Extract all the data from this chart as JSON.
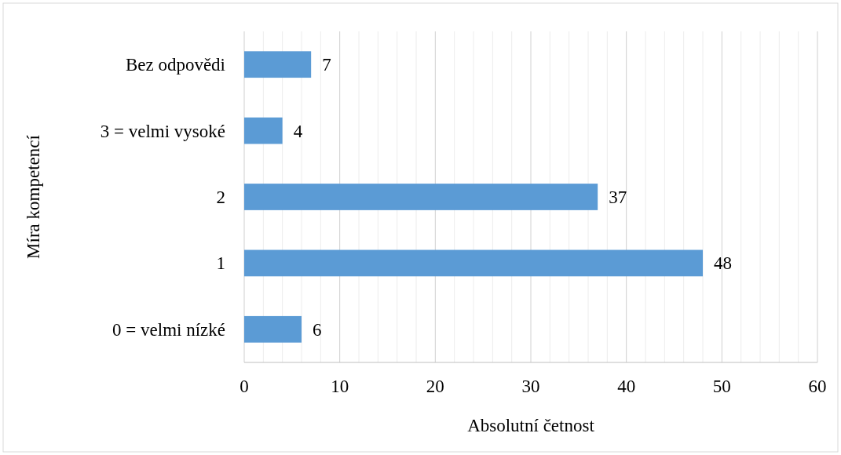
{
  "chart_data": {
    "type": "bar",
    "orientation": "horizontal",
    "categories": [
      "Bez odpovědi",
      "3 = velmi vysoké",
      "2",
      "1",
      "0 = velmi nízké"
    ],
    "values": [
      7,
      4,
      37,
      48,
      6
    ],
    "color": "#5b9bd5",
    "xlim": [
      0,
      60
    ],
    "xticks": [
      0,
      {
        "value": 2,
        "label": null
      },
      {
        "value": 4,
        "label": null
      },
      {
        "value": 6,
        "label": null
      },
      {
        "value": 8,
        "label": null
      },
      10,
      {
        "value": 12,
        "label": null
      },
      {
        "value": 14,
        "label": null
      },
      {
        "value": 16,
        "label": null
      },
      {
        "value": 18,
        "label": null
      },
      20,
      {
        "value": 22,
        "label": null
      },
      {
        "value": 24,
        "label": null
      },
      {
        "value": 26,
        "label": null
      },
      {
        "value": 28,
        "label": null
      },
      30,
      {
        "value": 32,
        "label": null
      },
      {
        "value": 34,
        "label": null
      },
      {
        "value": 36,
        "label": null
      },
      {
        "value": 38,
        "label": null
      },
      40,
      {
        "value": 42,
        "label": null
      },
      {
        "value": 44,
        "label": null
      },
      {
        "value": 46,
        "label": null
      },
      {
        "value": 48,
        "label": null
      },
      50,
      {
        "value": 52,
        "label": null
      },
      {
        "value": 54,
        "label": null
      },
      {
        "value": 56,
        "label": null
      },
      {
        "value": 58,
        "label": null
      },
      60
    ],
    "xlabel": "Absolutní četnost",
    "ylabel": "Míra kompetencí",
    "grid": "x",
    "data_labels": true
  }
}
